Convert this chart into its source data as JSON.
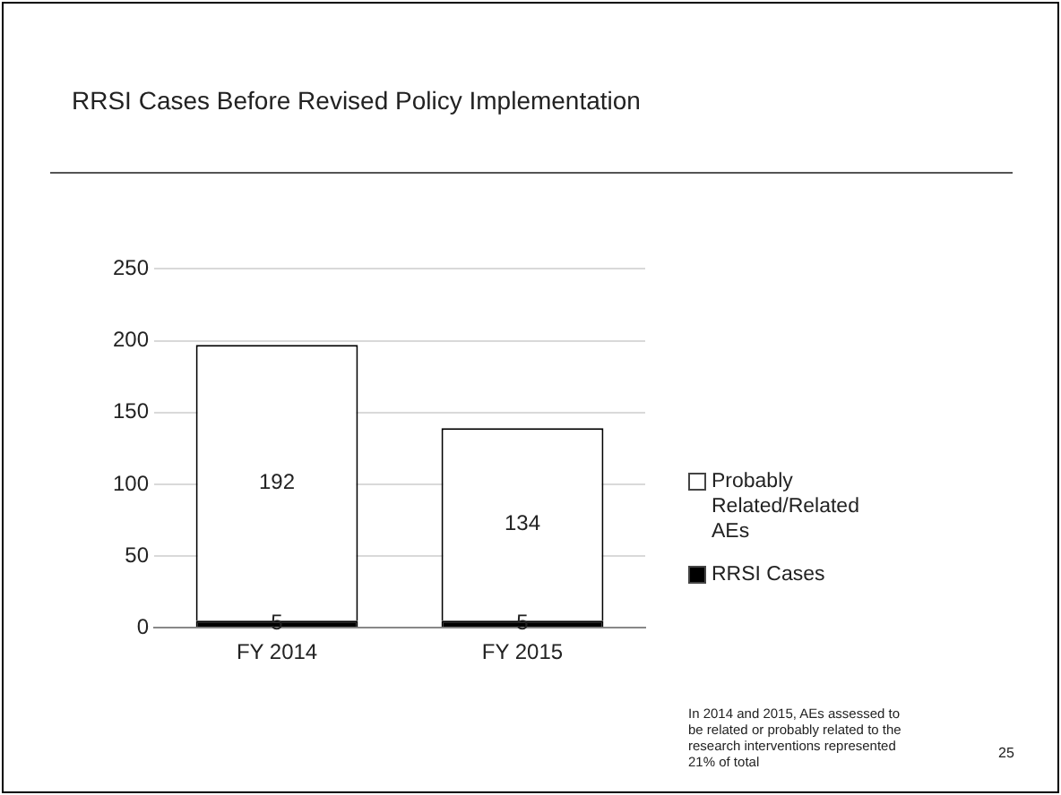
{
  "chart_data": {
    "type": "bar",
    "title": "RRSI Cases Before Revised Policy Implementation",
    "categories": [
      "FY 2014",
      "FY 2015"
    ],
    "stacked": true,
    "series": [
      {
        "name": "RRSI Cases",
        "color": "#000000",
        "values": [
          5,
          5
        ]
      },
      {
        "name": "Probably Related/Related AEs",
        "color": "#ffffff",
        "values": [
          192,
          134
        ]
      }
    ],
    "ylim": [
      0,
      250
    ],
    "yticks": [
      0,
      50,
      100,
      150,
      200,
      250
    ],
    "grid": "y",
    "legend": "right",
    "data_labels": true,
    "annotations": [
      "In 2014 and 2015, AEs assessed to be related or probably related to the research interventions represented 21% of total",
      "25"
    ]
  }
}
